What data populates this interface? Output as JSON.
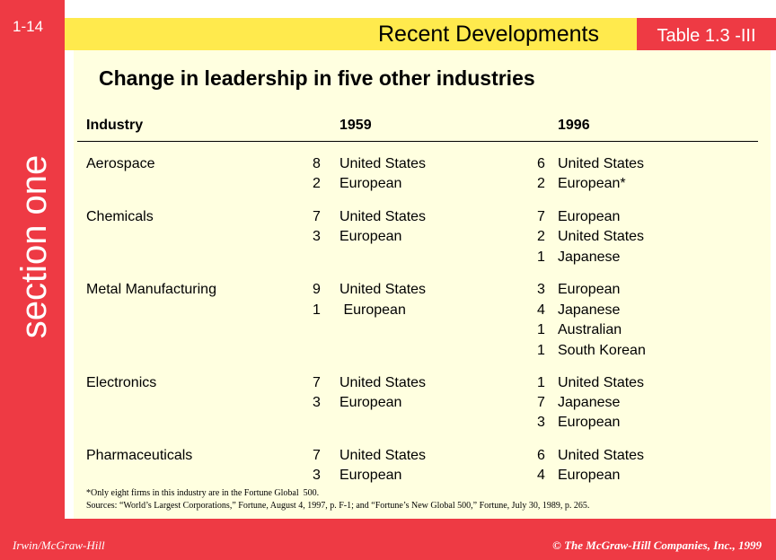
{
  "slide_number": "1-14",
  "section_label": "section one",
  "header": {
    "title": "Recent Developments",
    "table_tag": "Table 1.3 -III"
  },
  "main_title": "Change in leadership in five other industries",
  "table": {
    "headers": {
      "industry": "Industry",
      "y1959": "1959",
      "y1996": "1996"
    },
    "rows": [
      {
        "industry": "Aerospace",
        "n1959": "8",
        "c1959": "United States",
        "n1996": "6",
        "c1996": "United States"
      },
      {
        "industry": "",
        "n1959": "2",
        "c1959": "European",
        "n1996": "2",
        "c1996": "European*"
      },
      {
        "industry": "Chemicals",
        "n1959": "7",
        "c1959": "United States",
        "n1996": "7",
        "c1996": "European"
      },
      {
        "industry": "",
        "n1959": "3",
        "c1959": "European",
        "n1996": "2",
        "c1996": "United States"
      },
      {
        "industry": "",
        "n1959": "",
        "c1959": "",
        "n1996": "1",
        "c1996": "Japanese"
      },
      {
        "industry": "Metal Manufacturing",
        "n1959": "9",
        "c1959": "United States",
        "n1996": "3",
        "c1996": "European"
      },
      {
        "industry": "",
        "n1959": "1",
        "c1959": " European",
        "n1996": "4",
        "c1996": "Japanese"
      },
      {
        "industry": "",
        "n1959": "",
        "c1959": "",
        "n1996": "1",
        "c1996": "Australian"
      },
      {
        "industry": "",
        "n1959": "",
        "c1959": "",
        "n1996": "1",
        "c1996": "South Korean"
      },
      {
        "industry": "Electronics",
        "n1959": "7",
        "c1959": "United States",
        "n1996": "1",
        "c1996": "United States"
      },
      {
        "industry": "",
        "n1959": "3",
        "c1959": "European",
        "n1996": "7",
        "c1996": "Japanese"
      },
      {
        "industry": "",
        "n1959": "",
        "c1959": "",
        "n1996": "3",
        "c1996": "European"
      },
      {
        "industry": "Pharmaceuticals",
        "n1959": "7",
        "c1959": "United States",
        "n1996": "6",
        "c1996": "United States"
      },
      {
        "industry": "",
        "n1959": "3",
        "c1959": "European",
        "n1996": "4",
        "c1996": "European"
      }
    ]
  },
  "notes": {
    "footnote": "*Only eight firms in this industry are in the Fortune Global  500.",
    "sources": "Sources: “World’s Largest Corporations,” Fortune, August 4, 1997, p. F-1; and “Fortune’s New Global 500,” Fortune, July 30, 1989, p. 265."
  },
  "footer": {
    "left": "Irwin/McGraw-Hill",
    "right": "© The McGraw-Hill Companies, Inc., 1999"
  },
  "colors": {
    "accent_red": "#ee3a44",
    "header_yellow": "#ffea4d",
    "content_cream": "#ffffe0"
  }
}
